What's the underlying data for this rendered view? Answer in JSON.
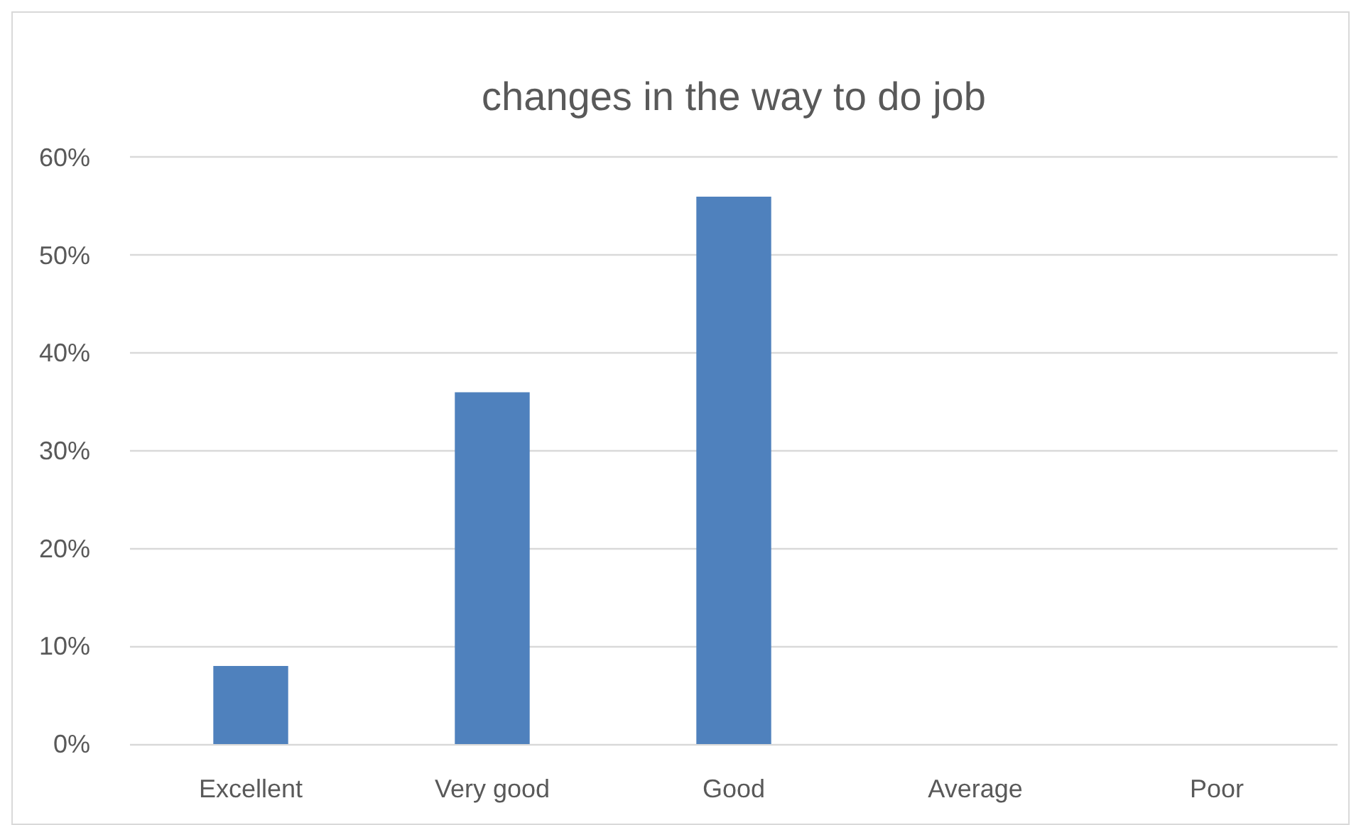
{
  "chart_data": {
    "type": "bar",
    "title": "changes in the way to do job",
    "categories": [
      "Excellent",
      "Very good",
      "Good",
      "Average",
      "Poor"
    ],
    "values": [
      8,
      36,
      56,
      0,
      0
    ],
    "color": "#4f81bd",
    "ylim": [
      0,
      60
    ],
    "yticks": [
      {
        "value": 0,
        "label": "0%"
      },
      {
        "value": 10,
        "label": "10%"
      },
      {
        "value": 20,
        "label": "20%"
      },
      {
        "value": 30,
        "label": "30%"
      },
      {
        "value": 40,
        "label": "40%"
      },
      {
        "value": 50,
        "label": "50%"
      },
      {
        "value": 60,
        "label": "60%"
      }
    ],
    "grid": "y"
  }
}
